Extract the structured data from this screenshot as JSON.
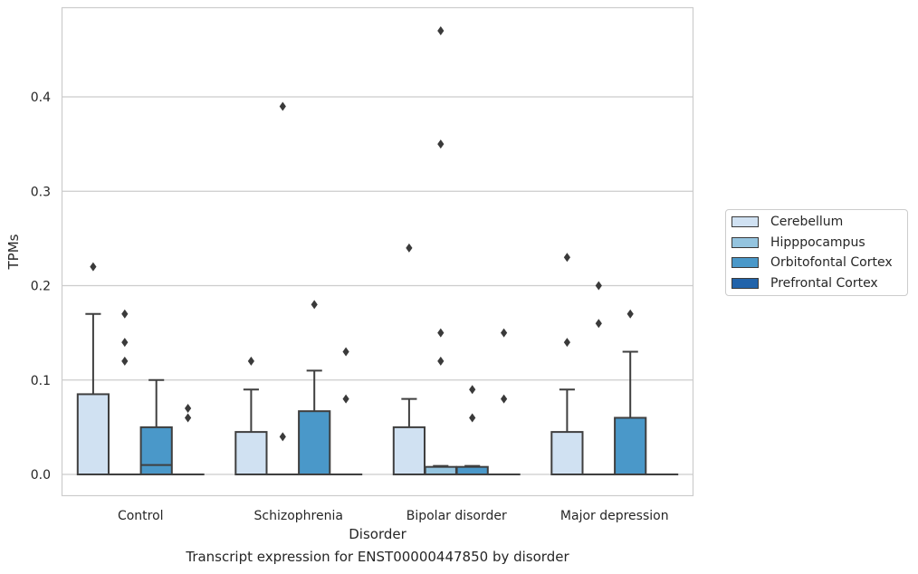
{
  "chart_data": {
    "type": "box",
    "title": "",
    "caption": "Transcript expression for ENST00000447850 by disorder",
    "xlabel": "Disorder",
    "ylabel": "TPMs",
    "ylim": [
      -0.023,
      0.495
    ],
    "yticks": [
      0.0,
      0.1,
      0.2,
      0.3,
      0.4
    ],
    "ytick_labels": [
      "0.0",
      "0.1",
      "0.2",
      "0.3",
      "0.4"
    ],
    "grid": "horizontal",
    "legend_position": "right",
    "categories": [
      "Control",
      "Schizophrenia",
      "Bipolar disorder",
      "Major depression"
    ],
    "series": [
      {
        "name": "Cerebellum",
        "color": "#d0e1f2",
        "boxes": [
          {
            "q1": 0,
            "median": 0,
            "q3": 0.085,
            "whisker_low": 0,
            "whisker_high": 0.17,
            "outliers": [
              0.22
            ]
          },
          {
            "q1": 0,
            "median": 0,
            "q3": 0.045,
            "whisker_low": 0,
            "whisker_high": 0.09,
            "outliers": [
              0.12
            ]
          },
          {
            "q1": 0,
            "median": 0,
            "q3": 0.05,
            "whisker_low": 0,
            "whisker_high": 0.08,
            "outliers": [
              0.24
            ]
          },
          {
            "q1": 0,
            "median": 0,
            "q3": 0.045,
            "whisker_low": 0,
            "whisker_high": 0.09,
            "outliers": [
              0.14,
              0.23
            ]
          }
        ]
      },
      {
        "name": "Hipppocampus",
        "color": "#94c4df",
        "boxes": [
          {
            "q1": 0,
            "median": 0,
            "q3": 0,
            "whisker_low": 0,
            "whisker_high": 0,
            "outliers": [
              0.12,
              0.14,
              0.17
            ]
          },
          {
            "q1": 0,
            "median": 0,
            "q3": 0,
            "whisker_low": 0,
            "whisker_high": 0,
            "outliers": [
              0.04,
              0.39
            ]
          },
          {
            "q1": 0,
            "median": 0,
            "q3": 0.008,
            "whisker_low": 0,
            "whisker_high": 0.009,
            "outliers": [
              0.12,
              0.15,
              0.35,
              0.47
            ]
          },
          {
            "q1": 0,
            "median": 0,
            "q3": 0,
            "whisker_low": 0,
            "whisker_high": 0,
            "outliers": [
              0.16,
              0.2
            ]
          }
        ]
      },
      {
        "name": "Orbitofontal Cortex",
        "color": "#4a98c9",
        "boxes": [
          {
            "q1": 0,
            "median": 0.01,
            "q3": 0.05,
            "whisker_low": 0,
            "whisker_high": 0.1,
            "outliers": []
          },
          {
            "q1": 0,
            "median": 0,
            "q3": 0.067,
            "whisker_low": 0,
            "whisker_high": 0.11,
            "outliers": [
              0.18
            ]
          },
          {
            "q1": 0,
            "median": 0,
            "q3": 0.008,
            "whisker_low": 0,
            "whisker_high": 0.009,
            "outliers": [
              0.06,
              0.09
            ]
          },
          {
            "q1": 0,
            "median": 0,
            "q3": 0.06,
            "whisker_low": 0,
            "whisker_high": 0.13,
            "outliers": [
              0.17
            ]
          }
        ]
      },
      {
        "name": "Prefrontal Cortex",
        "color": "#2163aa",
        "boxes": [
          {
            "q1": 0,
            "median": 0,
            "q3": 0,
            "whisker_low": 0,
            "whisker_high": 0,
            "outliers": [
              0.06,
              0.07
            ]
          },
          {
            "q1": 0,
            "median": 0,
            "q3": 0,
            "whisker_low": 0,
            "whisker_high": 0,
            "outliers": [
              0.08,
              0.13
            ]
          },
          {
            "q1": 0,
            "median": 0,
            "q3": 0,
            "whisker_low": 0,
            "whisker_high": 0,
            "outliers": [
              0.08,
              0.15
            ]
          },
          {
            "q1": 0,
            "median": 0,
            "q3": 0,
            "whisker_low": 0,
            "whisker_high": 0,
            "outliers": []
          }
        ]
      }
    ],
    "colors": {
      "box_edge": "#3f3f3f",
      "grid": "#cccccc",
      "axes_border": "#cccccc",
      "outlier": "#3a3a3a"
    }
  }
}
